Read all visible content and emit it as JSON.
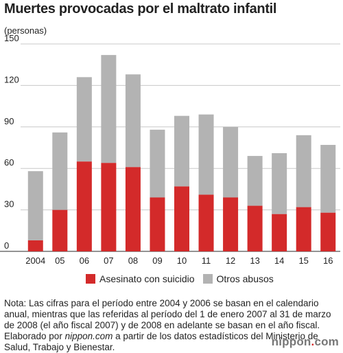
{
  "header": {
    "title": "Muertes provocadas por el maltrato infantil",
    "unit": "(personas)"
  },
  "chart_data": {
    "type": "bar",
    "stacked": true,
    "title": "Muertes provocadas por el maltrato infantil",
    "ylabel": "(personas)",
    "xlabel": "",
    "ylim": [
      0,
      150
    ],
    "yticks": [
      0,
      30,
      60,
      90,
      120,
      150
    ],
    "grid": true,
    "legend_position": "bottom",
    "categories": [
      "2004",
      "05",
      "06",
      "07",
      "08",
      "09",
      "10",
      "11",
      "12",
      "13",
      "14",
      "15",
      "16"
    ],
    "series": [
      {
        "name": "Asesinato con suicidio",
        "color": "#d32a2a",
        "values": [
          8,
          30,
          65,
          64,
          61,
          39,
          47,
          41,
          39,
          33,
          27,
          32,
          28
        ]
      },
      {
        "name": "Otros abusos",
        "color": "#b3b3b3",
        "values": [
          50,
          56,
          61,
          78,
          67,
          49,
          51,
          58,
          51,
          36,
          44,
          52,
          49
        ]
      }
    ]
  },
  "legend": {
    "item1": "Asesinato con suicidio",
    "item2": "Otros abusos",
    "color1": "#d32a2a",
    "color2": "#b3b3b3"
  },
  "note": {
    "line1": "Nota: Las cifras para el período entre 2004 y 2006 se basan en el calendario anual, mientras que las referidas al período del 1 de enero 2007 al 31 de marzo de 2008 (el año fiscal 2007) y de 2008 en adelante se basan en el año fiscal.",
    "line2_prefix": "Elaborado por ",
    "line2_source": "nippon.com",
    "line2_suffix": " a partir de los datos estadísticos del Ministerio de Salud, Trabajo y Bienestar."
  },
  "logo": {
    "left": "nippon",
    "dot": ".",
    "right": "com"
  }
}
